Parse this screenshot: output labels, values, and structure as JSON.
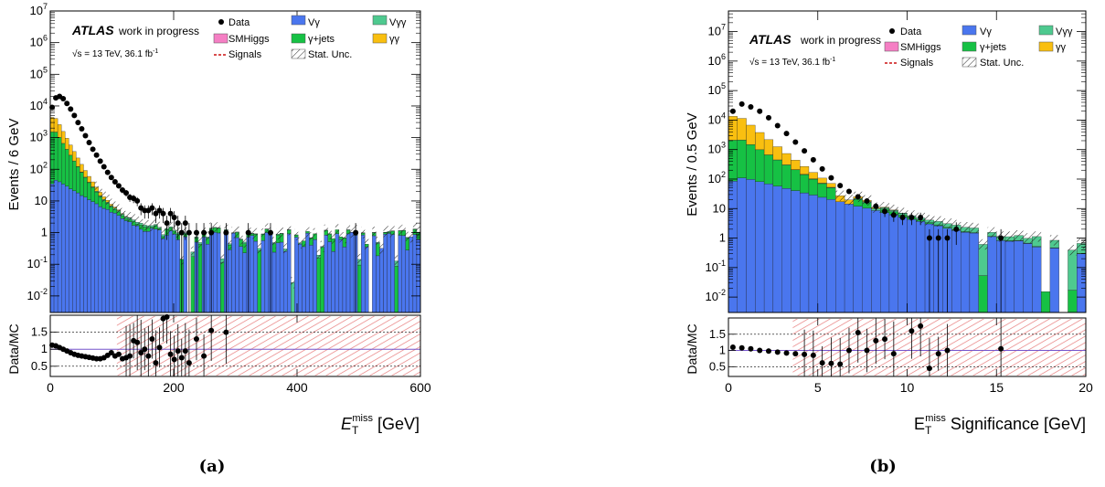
{
  "figure": {
    "captions": [
      "(a)",
      "(b)"
    ]
  },
  "colors": {
    "v_gamma": "#4a76ee",
    "gamma_jets": "#16c144",
    "v_gamma_gamma": "#4ec98f",
    "gamma_gamma": "#f9bf10",
    "smhiggs": "#f57fc4",
    "signals": "#cc1111",
    "data": "#000000",
    "band": "#dd4444"
  },
  "legend": {
    "data": "Data",
    "smhiggs": "SMHiggs",
    "signals": "Signals",
    "v_gamma": "Vγ",
    "gamma_jets": "γ+jets",
    "stat_unc": "Stat. Unc.",
    "v_gamma_gamma": "Vγγ",
    "gamma_gamma": "γγ"
  },
  "atlas": {
    "label": "ATLAS",
    "status": "work in progress",
    "energy_line": "√s = 13 TeV, 36.1 fb",
    "lumi_exp": "-1"
  },
  "chart_data": [
    {
      "type": "bar",
      "id": "a",
      "stacked": true,
      "logy": true,
      "xlabel_main": "E",
      "xlabel_sub": "T",
      "xlabel_sup": "miss",
      "xlabel_unit": "[GeV]",
      "ylabel": "Events / 6 GeV",
      "ratio_ylabel": "Data/MC",
      "xlim": [
        0,
        600
      ],
      "ylim": [
        0.003,
        10000000
      ],
      "ratio_ylim": [
        0.2,
        2.0
      ],
      "xticks": [
        0,
        200,
        400,
        600
      ],
      "ratio_yticks": [
        0.5,
        1,
        1.5
      ],
      "legend_position": "top",
      "bin_width": 6,
      "series": [
        {
          "name": "Vγ",
          "key": "v_gamma",
          "params": {
            "peak": 60,
            "decay": 0.028,
            "floor": 0.6
          }
        },
        {
          "name": "γ+jets",
          "key": "gamma_jets",
          "params": {
            "peak": 3000,
            "decay": 0.075,
            "floor": 0.25
          }
        },
        {
          "name": "Vγγ",
          "key": "v_gamma_gamma",
          "params": {
            "peak": 4,
            "decay": 0.02,
            "floor": 0.03
          }
        },
        {
          "name": "γγ",
          "key": "gamma_gamma",
          "params": {
            "peak": 6000,
            "decay": 0.09,
            "floor": 0.0
          }
        }
      ],
      "data_points": [
        {
          "x": 3,
          "y": 9000
        },
        {
          "x": 9,
          "y": 18000
        },
        {
          "x": 15,
          "y": 20000
        },
        {
          "x": 21,
          "y": 17000
        },
        {
          "x": 27,
          "y": 12000
        },
        {
          "x": 33,
          "y": 8000
        },
        {
          "x": 39,
          "y": 5000
        },
        {
          "x": 45,
          "y": 3000
        },
        {
          "x": 51,
          "y": 1900
        },
        {
          "x": 57,
          "y": 1150
        },
        {
          "x": 63,
          "y": 700
        },
        {
          "x": 69,
          "y": 430
        },
        {
          "x": 75,
          "y": 280
        },
        {
          "x": 81,
          "y": 180
        },
        {
          "x": 87,
          "y": 120
        },
        {
          "x": 93,
          "y": 80
        },
        {
          "x": 99,
          "y": 55
        },
        {
          "x": 105,
          "y": 40
        },
        {
          "x": 111,
          "y": 30
        },
        {
          "x": 117,
          "y": 22
        },
        {
          "x": 123,
          "y": 18
        },
        {
          "x": 129,
          "y": 13
        },
        {
          "x": 135,
          "y": 12
        },
        {
          "x": 141,
          "y": 10
        },
        {
          "x": 147,
          "y": 6
        },
        {
          "x": 153,
          "y": 5
        },
        {
          "x": 159,
          "y": 5
        },
        {
          "x": 165,
          "y": 6
        },
        {
          "x": 171,
          "y": 4
        },
        {
          "x": 177,
          "y": 5
        },
        {
          "x": 183,
          "y": 4
        },
        {
          "x": 189,
          "y": 2
        },
        {
          "x": 195,
          "y": 4
        },
        {
          "x": 201,
          "y": 3
        },
        {
          "x": 207,
          "y": 2
        },
        {
          "x": 213,
          "y": 1
        },
        {
          "x": 219,
          "y": 2
        },
        {
          "x": 225,
          "y": 1
        },
        {
          "x": 237,
          "y": 1
        },
        {
          "x": 249,
          "y": 1
        },
        {
          "x": 261,
          "y": 1
        },
        {
          "x": 285,
          "y": 1
        },
        {
          "x": 321,
          "y": 1
        },
        {
          "x": 357,
          "y": 1
        },
        {
          "x": 495,
          "y": 1
        }
      ],
      "ratio_points": [
        {
          "x": 3,
          "y": 1.12
        },
        {
          "x": 9,
          "y": 1.1
        },
        {
          "x": 15,
          "y": 1.05
        },
        {
          "x": 21,
          "y": 1.0
        },
        {
          "x": 27,
          "y": 0.95
        },
        {
          "x": 33,
          "y": 0.9
        },
        {
          "x": 39,
          "y": 0.85
        },
        {
          "x": 45,
          "y": 0.82
        },
        {
          "x": 51,
          "y": 0.8
        },
        {
          "x": 57,
          "y": 0.78
        },
        {
          "x": 63,
          "y": 0.76
        },
        {
          "x": 69,
          "y": 0.74
        },
        {
          "x": 75,
          "y": 0.72
        },
        {
          "x": 81,
          "y": 0.72
        },
        {
          "x": 87,
          "y": 0.75
        },
        {
          "x": 93,
          "y": 0.82
        },
        {
          "x": 99,
          "y": 0.9
        },
        {
          "x": 105,
          "y": 0.8
        },
        {
          "x": 111,
          "y": 0.85
        },
        {
          "x": 117,
          "y": 0.72
        },
        {
          "x": 123,
          "y": 0.75
        },
        {
          "x": 129,
          "y": 0.8
        },
        {
          "x": 135,
          "y": 1.25
        },
        {
          "x": 141,
          "y": 1.2
        },
        {
          "x": 147,
          "y": 0.9
        },
        {
          "x": 153,
          "y": 1.0
        },
        {
          "x": 159,
          "y": 0.8
        },
        {
          "x": 165,
          "y": 1.3
        },
        {
          "x": 171,
          "y": 0.6
        },
        {
          "x": 177,
          "y": 1.05
        },
        {
          "x": 183,
          "y": 1.9
        },
        {
          "x": 189,
          "y": 1.95
        },
        {
          "x": 195,
          "y": 0.85
        },
        {
          "x": 201,
          "y": 0.7
        },
        {
          "x": 207,
          "y": 0.95
        },
        {
          "x": 213,
          "y": 0.75
        },
        {
          "x": 219,
          "y": 0.95
        },
        {
          "x": 225,
          "y": 0.6
        },
        {
          "x": 237,
          "y": 1.3
        },
        {
          "x": 249,
          "y": 0.8
        },
        {
          "x": 261,
          "y": 1.55
        },
        {
          "x": 285,
          "y": 1.5
        }
      ]
    },
    {
      "type": "bar",
      "id": "b",
      "stacked": true,
      "logy": true,
      "xlabel_main": "E",
      "xlabel_sub": "T",
      "xlabel_sup": "miss",
      "xlabel_unit": "Significance [GeV]",
      "ylabel": "Events / 0.5 GeV",
      "ratio_ylabel": "Data/MC",
      "xlim": [
        0,
        20
      ],
      "ylim": [
        0.003,
        50000000
      ],
      "ratio_ylim": [
        0.2,
        2.0
      ],
      "xticks": [
        0,
        5,
        10,
        15,
        20
      ],
      "ratio_yticks": [
        0.5,
        1,
        1.5
      ],
      "legend_position": "top",
      "bin_width": 0.5,
      "series": [
        {
          "name": "Vγ",
          "key": "v_gamma",
          "params": {
            "peak": 150,
            "decay": 0.35,
            "floor": 0.2
          }
        },
        {
          "name": "γ+jets",
          "key": "gamma_jets",
          "params": {
            "peak": 4000,
            "decay": 0.85,
            "floor": 0.02
          }
        },
        {
          "name": "Vγγ",
          "key": "v_gamma_gamma",
          "params": {
            "peak": 8,
            "decay": 0.25,
            "floor": 0.3
          }
        },
        {
          "name": "γγ",
          "key": "gamma_gamma",
          "params": {
            "peak": 25000,
            "decay": 1.25,
            "floor": 0.0
          }
        }
      ],
      "data_points": [
        {
          "x": 0.25,
          "y": 20000
        },
        {
          "x": 0.75,
          "y": 35000
        },
        {
          "x": 1.25,
          "y": 28000
        },
        {
          "x": 1.75,
          "y": 20000
        },
        {
          "x": 2.25,
          "y": 12000
        },
        {
          "x": 2.75,
          "y": 6500
        },
        {
          "x": 3.25,
          "y": 3500
        },
        {
          "x": 3.75,
          "y": 1800
        },
        {
          "x": 4.25,
          "y": 900
        },
        {
          "x": 4.75,
          "y": 450
        },
        {
          "x": 5.25,
          "y": 220
        },
        {
          "x": 5.75,
          "y": 110
        },
        {
          "x": 6.25,
          "y": 60
        },
        {
          "x": 6.75,
          "y": 38
        },
        {
          "x": 7.25,
          "y": 25
        },
        {
          "x": 7.75,
          "y": 18
        },
        {
          "x": 8.25,
          "y": 12
        },
        {
          "x": 8.75,
          "y": 8
        },
        {
          "x": 9.25,
          "y": 6
        },
        {
          "x": 9.75,
          "y": 5
        },
        {
          "x": 10.25,
          "y": 5
        },
        {
          "x": 10.75,
          "y": 5
        },
        {
          "x": 11.25,
          "y": 1
        },
        {
          "x": 11.75,
          "y": 1
        },
        {
          "x": 12.25,
          "y": 1
        },
        {
          "x": 12.75,
          "y": 2
        },
        {
          "x": 15.25,
          "y": 1
        }
      ],
      "ratio_points": [
        {
          "x": 0.25,
          "y": 1.1
        },
        {
          "x": 0.75,
          "y": 1.08
        },
        {
          "x": 1.25,
          "y": 1.05
        },
        {
          "x": 1.75,
          "y": 1.0
        },
        {
          "x": 2.25,
          "y": 0.98
        },
        {
          "x": 2.75,
          "y": 0.95
        },
        {
          "x": 3.25,
          "y": 0.92
        },
        {
          "x": 3.75,
          "y": 0.9
        },
        {
          "x": 4.25,
          "y": 0.88
        },
        {
          "x": 4.75,
          "y": 0.85
        },
        {
          "x": 5.25,
          "y": 0.62
        },
        {
          "x": 5.75,
          "y": 0.6
        },
        {
          "x": 6.25,
          "y": 0.58
        },
        {
          "x": 6.75,
          "y": 1.0
        },
        {
          "x": 7.25,
          "y": 1.55
        },
        {
          "x": 7.75,
          "y": 1.0
        },
        {
          "x": 8.25,
          "y": 1.3
        },
        {
          "x": 8.75,
          "y": 1.35
        },
        {
          "x": 9.25,
          "y": 0.9
        },
        {
          "x": 10.25,
          "y": 1.6
        },
        {
          "x": 10.75,
          "y": 1.75
        },
        {
          "x": 11.25,
          "y": 0.45
        },
        {
          "x": 11.75,
          "y": 0.9
        },
        {
          "x": 12.25,
          "y": 1.0
        },
        {
          "x": 15.25,
          "y": 1.05
        }
      ]
    }
  ]
}
